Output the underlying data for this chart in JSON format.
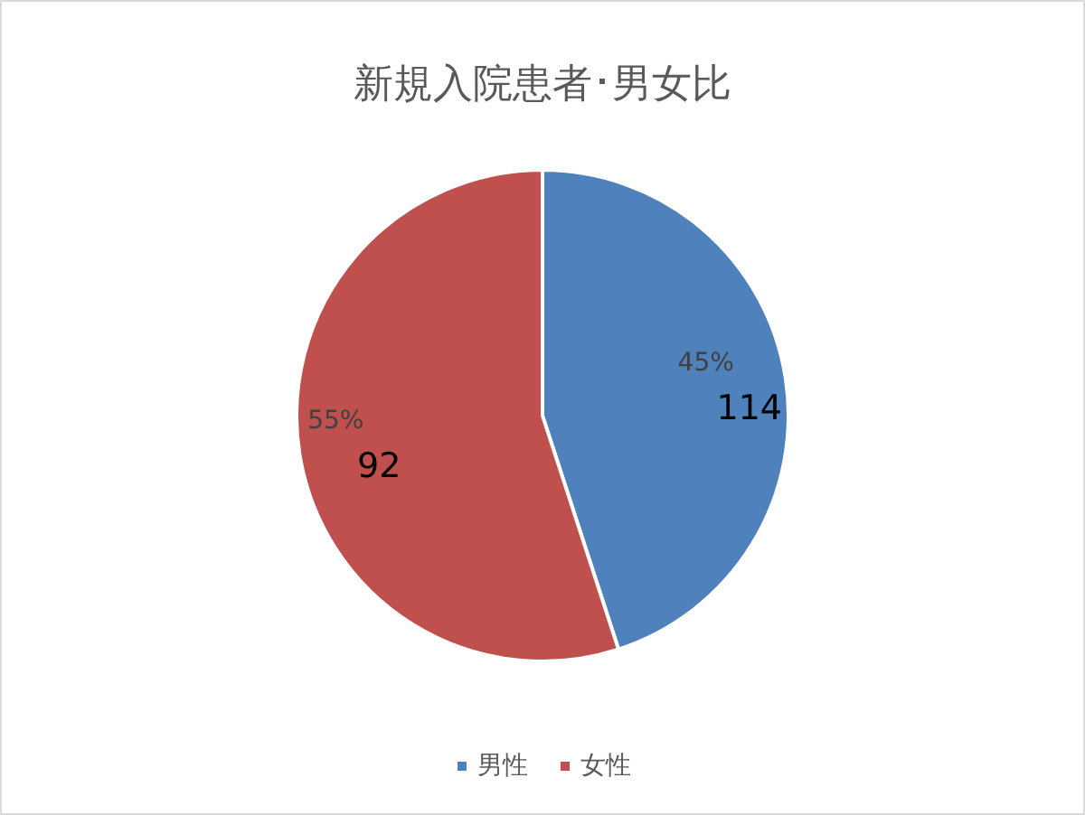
{
  "chart_data": {
    "type": "pie",
    "title": "新規入院患者･男女比",
    "categories": [
      "男性",
      "女性"
    ],
    "values": [
      45,
      55
    ],
    "colors": [
      "#4f81bd",
      "#c0504d"
    ],
    "value_labels": [
      "45%\n114",
      "55%\n92"
    ],
    "legend": "bottom"
  }
}
